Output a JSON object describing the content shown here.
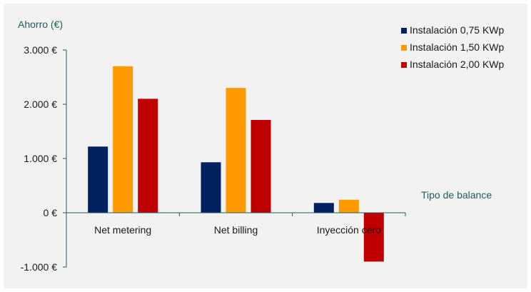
{
  "chart_data": {
    "type": "bar",
    "ylabel": "Ahorro (€)",
    "xlabel": "Tipo de balance",
    "categories": [
      "Net metering",
      "Net billing",
      "Inyección cero"
    ],
    "series": [
      {
        "name": "Instalación 0,75 KWp",
        "color": "#002060",
        "values": [
          1220,
          930,
          180
        ]
      },
      {
        "name": "Instalación 1,50 KWp",
        "color": "#ff9900",
        "values": [
          2700,
          2300,
          240
        ]
      },
      {
        "name": "Instalación 2,00 KWp",
        "color": "#c00000",
        "values": [
          2100,
          1710,
          -900
        ]
      }
    ],
    "ylim": [
      -1000,
      3000
    ],
    "yticks": [
      3000,
      2000,
      1000,
      0,
      -1000
    ],
    "ytick_labels": [
      "3.000 €",
      "2.000 €",
      "1.000 €",
      "0 €",
      "-1.000 €"
    ],
    "legend_position": "top-right",
    "grid": false,
    "axis_color": "#1f5e5b"
  }
}
